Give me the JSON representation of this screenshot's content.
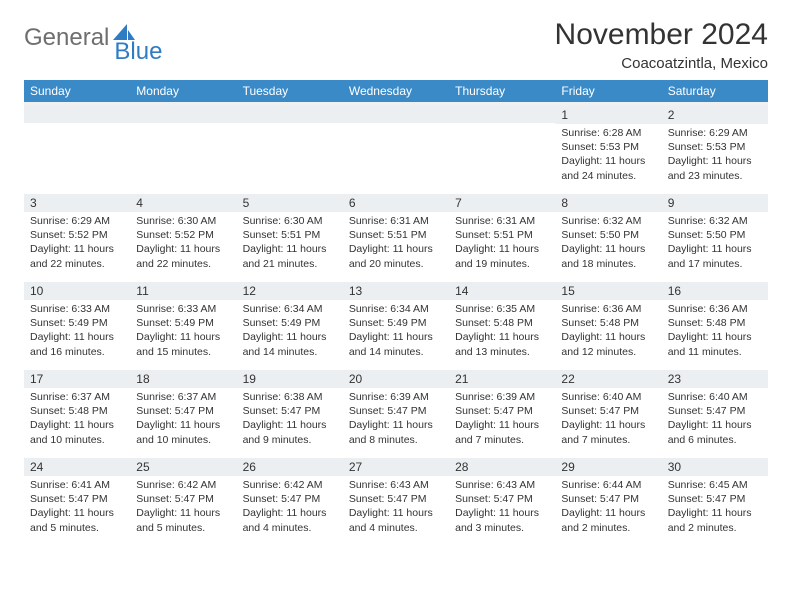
{
  "logo": {
    "text1": "General",
    "text2": "Blue"
  },
  "title": "November 2024",
  "location": "Coacoatzintla, Mexico",
  "colors": {
    "header_bg": "#3a8ac8",
    "header_fg": "#ffffff",
    "daynum_bg": "#eceff1",
    "text": "#333333",
    "logo_gray": "#6e6e6e",
    "logo_blue": "#2f7cc4"
  },
  "day_labels": [
    "Sunday",
    "Monday",
    "Tuesday",
    "Wednesday",
    "Thursday",
    "Friday",
    "Saturday"
  ],
  "weeks": [
    [
      null,
      null,
      null,
      null,
      null,
      {
        "n": "1",
        "sunrise": "6:28 AM",
        "sunset": "5:53 PM",
        "dl": "11 hours and 24 minutes."
      },
      {
        "n": "2",
        "sunrise": "6:29 AM",
        "sunset": "5:53 PM",
        "dl": "11 hours and 23 minutes."
      }
    ],
    [
      {
        "n": "3",
        "sunrise": "6:29 AM",
        "sunset": "5:52 PM",
        "dl": "11 hours and 22 minutes."
      },
      {
        "n": "4",
        "sunrise": "6:30 AM",
        "sunset": "5:52 PM",
        "dl": "11 hours and 22 minutes."
      },
      {
        "n": "5",
        "sunrise": "6:30 AM",
        "sunset": "5:51 PM",
        "dl": "11 hours and 21 minutes."
      },
      {
        "n": "6",
        "sunrise": "6:31 AM",
        "sunset": "5:51 PM",
        "dl": "11 hours and 20 minutes."
      },
      {
        "n": "7",
        "sunrise": "6:31 AM",
        "sunset": "5:51 PM",
        "dl": "11 hours and 19 minutes."
      },
      {
        "n": "8",
        "sunrise": "6:32 AM",
        "sunset": "5:50 PM",
        "dl": "11 hours and 18 minutes."
      },
      {
        "n": "9",
        "sunrise": "6:32 AM",
        "sunset": "5:50 PM",
        "dl": "11 hours and 17 minutes."
      }
    ],
    [
      {
        "n": "10",
        "sunrise": "6:33 AM",
        "sunset": "5:49 PM",
        "dl": "11 hours and 16 minutes."
      },
      {
        "n": "11",
        "sunrise": "6:33 AM",
        "sunset": "5:49 PM",
        "dl": "11 hours and 15 minutes."
      },
      {
        "n": "12",
        "sunrise": "6:34 AM",
        "sunset": "5:49 PM",
        "dl": "11 hours and 14 minutes."
      },
      {
        "n": "13",
        "sunrise": "6:34 AM",
        "sunset": "5:49 PM",
        "dl": "11 hours and 14 minutes."
      },
      {
        "n": "14",
        "sunrise": "6:35 AM",
        "sunset": "5:48 PM",
        "dl": "11 hours and 13 minutes."
      },
      {
        "n": "15",
        "sunrise": "6:36 AM",
        "sunset": "5:48 PM",
        "dl": "11 hours and 12 minutes."
      },
      {
        "n": "16",
        "sunrise": "6:36 AM",
        "sunset": "5:48 PM",
        "dl": "11 hours and 11 minutes."
      }
    ],
    [
      {
        "n": "17",
        "sunrise": "6:37 AM",
        "sunset": "5:48 PM",
        "dl": "11 hours and 10 minutes."
      },
      {
        "n": "18",
        "sunrise": "6:37 AM",
        "sunset": "5:47 PM",
        "dl": "11 hours and 10 minutes."
      },
      {
        "n": "19",
        "sunrise": "6:38 AM",
        "sunset": "5:47 PM",
        "dl": "11 hours and 9 minutes."
      },
      {
        "n": "20",
        "sunrise": "6:39 AM",
        "sunset": "5:47 PM",
        "dl": "11 hours and 8 minutes."
      },
      {
        "n": "21",
        "sunrise": "6:39 AM",
        "sunset": "5:47 PM",
        "dl": "11 hours and 7 minutes."
      },
      {
        "n": "22",
        "sunrise": "6:40 AM",
        "sunset": "5:47 PM",
        "dl": "11 hours and 7 minutes."
      },
      {
        "n": "23",
        "sunrise": "6:40 AM",
        "sunset": "5:47 PM",
        "dl": "11 hours and 6 minutes."
      }
    ],
    [
      {
        "n": "24",
        "sunrise": "6:41 AM",
        "sunset": "5:47 PM",
        "dl": "11 hours and 5 minutes."
      },
      {
        "n": "25",
        "sunrise": "6:42 AM",
        "sunset": "5:47 PM",
        "dl": "11 hours and 5 minutes."
      },
      {
        "n": "26",
        "sunrise": "6:42 AM",
        "sunset": "5:47 PM",
        "dl": "11 hours and 4 minutes."
      },
      {
        "n": "27",
        "sunrise": "6:43 AM",
        "sunset": "5:47 PM",
        "dl": "11 hours and 4 minutes."
      },
      {
        "n": "28",
        "sunrise": "6:43 AM",
        "sunset": "5:47 PM",
        "dl": "11 hours and 3 minutes."
      },
      {
        "n": "29",
        "sunrise": "6:44 AM",
        "sunset": "5:47 PM",
        "dl": "11 hours and 2 minutes."
      },
      {
        "n": "30",
        "sunrise": "6:45 AM",
        "sunset": "5:47 PM",
        "dl": "11 hours and 2 minutes."
      }
    ]
  ],
  "labels": {
    "sunrise": "Sunrise:",
    "sunset": "Sunset:",
    "daylight": "Daylight:"
  }
}
